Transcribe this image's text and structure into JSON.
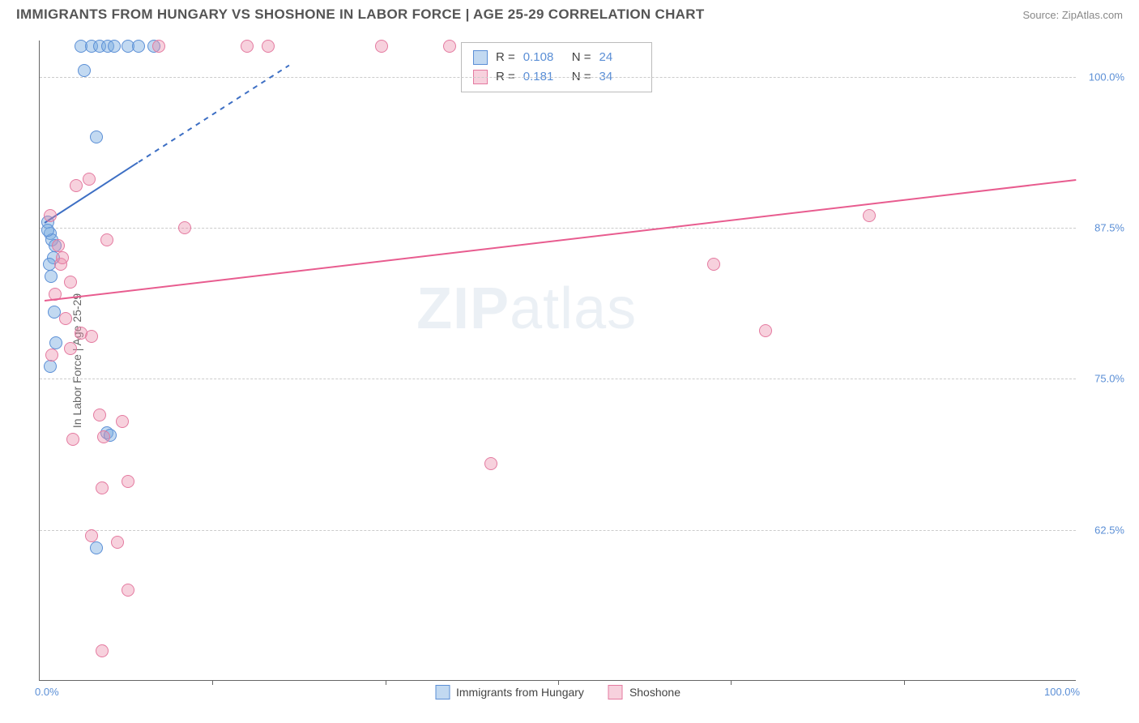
{
  "header": {
    "title": "IMMIGRANTS FROM HUNGARY VS SHOSHONE IN LABOR FORCE | AGE 25-29 CORRELATION CHART",
    "source": "Source: ZipAtlas.com"
  },
  "watermark": {
    "zip": "ZIP",
    "atlas": "atlas"
  },
  "chart": {
    "type": "scatter",
    "y_axis_title": "In Labor Force | Age 25-29",
    "background_color": "#ffffff",
    "grid_color": "#cccccc",
    "axis_color": "#666666",
    "tick_label_color": "#5b8fd6",
    "tick_fontsize": 13,
    "xlim": [
      0,
      100
    ],
    "ylim": [
      50,
      103
    ],
    "x_ticks": [
      {
        "pos": 0,
        "label": "0.0%"
      },
      {
        "pos": 100,
        "label": "100.0%"
      }
    ],
    "x_minor_ticks": [
      16.67,
      33.33,
      50,
      66.67,
      83.33
    ],
    "y_ticks": [
      {
        "pos": 62.5,
        "label": "62.5%"
      },
      {
        "pos": 75.0,
        "label": "75.0%"
      },
      {
        "pos": 87.5,
        "label": "87.5%"
      },
      {
        "pos": 100.0,
        "label": "100.0%"
      }
    ],
    "point_radius": 8,
    "series": [
      {
        "name": "Immigrants from Hungary",
        "fill_color": "rgba(120,170,225,0.45)",
        "stroke_color": "#5b8fd6",
        "R": "0.108",
        "N": "24",
        "trend": {
          "x1": 0.5,
          "y1": 88.0,
          "x2": 9.5,
          "y2": 93.0,
          "color": "#3d6fc4",
          "dash_ext": {
            "x2": 24,
            "y2": 101
          }
        },
        "points": [
          [
            0.8,
            88.0
          ],
          [
            1.0,
            87.0
          ],
          [
            1.2,
            86.5
          ],
          [
            1.5,
            86.0
          ],
          [
            1.3,
            85.0
          ],
          [
            0.9,
            84.5
          ],
          [
            1.1,
            83.5
          ],
          [
            1.4,
            80.5
          ],
          [
            1.6,
            78.0
          ],
          [
            1.0,
            76.0
          ],
          [
            4.0,
            102.5
          ],
          [
            5.0,
            102.5
          ],
          [
            5.8,
            102.5
          ],
          [
            6.6,
            102.5
          ],
          [
            7.2,
            102.5
          ],
          [
            8.5,
            102.5
          ],
          [
            9.5,
            102.5
          ],
          [
            11.0,
            102.5
          ],
          [
            4.3,
            100.5
          ],
          [
            5.5,
            95.0
          ],
          [
            6.5,
            70.5
          ],
          [
            6.8,
            70.3
          ],
          [
            5.5,
            61.0
          ],
          [
            0.8,
            87.3
          ]
        ]
      },
      {
        "name": "Shoshone",
        "fill_color": "rgba(235,140,170,0.40)",
        "stroke_color": "#e47aa0",
        "R": "0.181",
        "N": "34",
        "trend": {
          "x1": 0.5,
          "y1": 81.5,
          "x2": 100,
          "y2": 91.5,
          "color": "#e85c8f"
        },
        "points": [
          [
            1.0,
            88.5
          ],
          [
            2.0,
            84.5
          ],
          [
            3.0,
            83.0
          ],
          [
            1.5,
            82.0
          ],
          [
            2.5,
            80.0
          ],
          [
            3.5,
            91.0
          ],
          [
            4.8,
            91.5
          ],
          [
            6.5,
            86.5
          ],
          [
            5.0,
            78.5
          ],
          [
            3.0,
            77.5
          ],
          [
            5.8,
            72.0
          ],
          [
            8.0,
            71.5
          ],
          [
            6.2,
            70.2
          ],
          [
            8.5,
            66.5
          ],
          [
            6.0,
            66.0
          ],
          [
            5.0,
            62.0
          ],
          [
            7.5,
            61.5
          ],
          [
            8.5,
            57.5
          ],
          [
            6.0,
            52.5
          ],
          [
            11.5,
            102.5
          ],
          [
            14.0,
            87.5
          ],
          [
            20.0,
            102.5
          ],
          [
            22.0,
            102.5
          ],
          [
            33.0,
            102.5
          ],
          [
            39.5,
            102.5
          ],
          [
            43.5,
            68.0
          ],
          [
            65.0,
            84.5
          ],
          [
            70.0,
            79.0
          ],
          [
            80.0,
            88.5
          ],
          [
            1.8,
            86.0
          ],
          [
            2.2,
            85.0
          ],
          [
            3.2,
            70.0
          ],
          [
            4.0,
            78.8
          ],
          [
            1.2,
            77.0
          ]
        ]
      }
    ]
  },
  "legend_top": {
    "r_label": "R =",
    "n_label": "N ="
  },
  "bottom_legend": {
    "items": [
      "Immigrants from Hungary",
      "Shoshone"
    ]
  }
}
